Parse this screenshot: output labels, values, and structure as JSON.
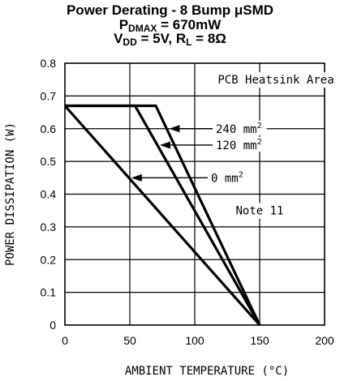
{
  "chart_data": {
    "type": "line",
    "title_line1": "Power Derating - 8 Bump μSMD",
    "title_line2": {
      "pre": "P",
      "sub": "DMAX",
      "post": " = 670mW"
    },
    "title_line3": {
      "a": "V",
      "a_sub": "DD",
      "b": " = 5V, R",
      "b_sub": "L",
      "c": " = 8Ω"
    },
    "xlabel": "AMBIENT TEMPERATURE (°C)",
    "ylabel": "POWER DISSIPATION (W)",
    "xlim": [
      0,
      200
    ],
    "ylim": [
      0,
      0.8
    ],
    "xticks": [
      "0",
      "50",
      "100",
      "150",
      "200"
    ],
    "yticks": [
      "0",
      "0.1",
      "0.2",
      "0.3",
      "0.4",
      "0.5",
      "0.6",
      "0.7",
      "0.8"
    ],
    "grid": true,
    "series": [
      {
        "name": "240 mm2",
        "label": "240 mm",
        "sup": "2",
        "points": [
          [
            0,
            0.67
          ],
          [
            70,
            0.67
          ],
          [
            150,
            0
          ]
        ]
      },
      {
        "name": "120 mm2",
        "label": "120 mm",
        "sup": "2",
        "points": [
          [
            0,
            0.67
          ],
          [
            54,
            0.67
          ],
          [
            150,
            0
          ]
        ]
      },
      {
        "name": "0 mm2",
        "label": "0 mm",
        "sup": "2",
        "points": [
          [
            0,
            0.67
          ],
          [
            150,
            0
          ]
        ]
      }
    ],
    "annotations": {
      "heatsink_area": "PCB Heatsink Area",
      "note": "Note 11"
    }
  }
}
